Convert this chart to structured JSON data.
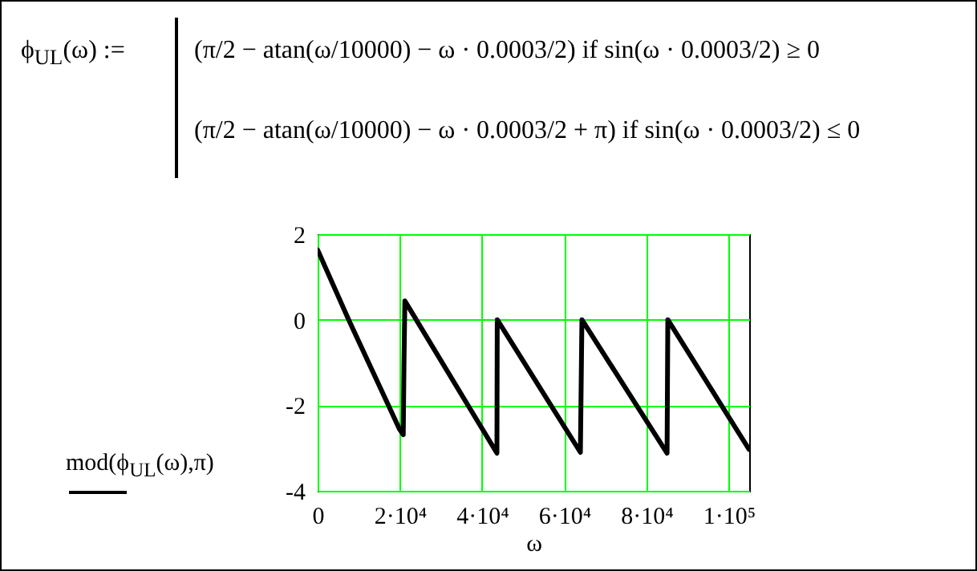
{
  "chart_data": {
    "type": "line",
    "annotations": [
      "ϕ$_{UL}$(ω) :=",
      "(π/2 − atan(ω/10000) − ω · 0.0003/2)  if  sin(ω · 0.0003/2) ≥ 0",
      "(π/2 − atan(ω/10000) − ω · 0.0003/2 + π)  if  sin(ω · 0.0003/2) ≤ 0"
    ],
    "xlabel": "ω",
    "ylabel": "mod(ϕ$_{UL}$(ω),π)",
    "x": [
      0,
      7550,
      19920,
      20830,
      21000,
      21220,
      43620,
      43700,
      63930,
      64300,
      85020,
      85200,
      104940
    ],
    "series": [
      {
        "color": "#000000",
        "values": [
          1.63,
          0,
          -2.56,
          -2.69,
          -1.1,
          0.44,
          -3.12,
          0,
          -3.1,
          0,
          -3.12,
          0,
          -3.03
        ]
      }
    ],
    "xlim": [
      0,
      105000
    ],
    "xticks": [
      0,
      {
        "value": 20000,
        "label": "2·10⁴"
      },
      {
        "value": 40000,
        "label": "4·10⁴"
      },
      {
        "value": 60000,
        "label": "6·10⁴"
      },
      {
        "value": 80000,
        "label": "8·10⁴"
      },
      {
        "value": 100000,
        "label": "1·10⁵"
      }
    ],
    "ylim": [
      -4,
      2
    ],
    "yticks": [
      -4,
      -2,
      0,
      2
    ],
    "grid": true,
    "line_style": "solid",
    "marker": "none"
  }
}
